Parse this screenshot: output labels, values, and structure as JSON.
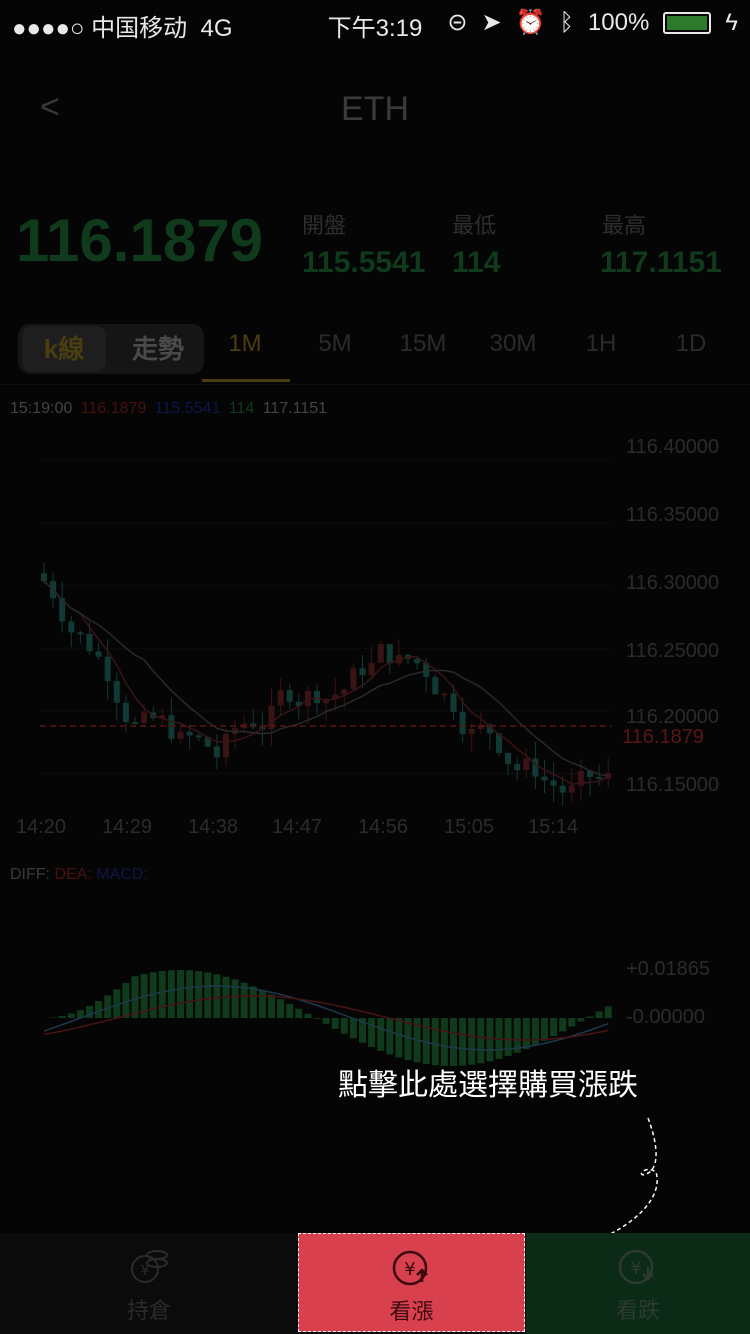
{
  "status_bar": {
    "carrier": "●●●●○ 中国移动",
    "network": "4G",
    "time": "下午3:19",
    "battery": "100%"
  },
  "nav": {
    "back_icon": "chevron-left-icon",
    "title": "ETH"
  },
  "quote": {
    "price": "116.1879",
    "open_label": "開盤",
    "open_value": "115.5541",
    "low_label": "最低",
    "low_value": "114",
    "high_label": "最高",
    "high_value": "117.1151"
  },
  "tabs": {
    "kline": "k線",
    "trend": "走勢",
    "intervals": [
      "1M",
      "5M",
      "15M",
      "30M",
      "1H",
      "1D"
    ],
    "active": "1M"
  },
  "chart_info": {
    "time": "15:19:00",
    "v1": "116.1879",
    "v2": "115.5541",
    "v3": "114",
    "v4": "117.1151"
  },
  "chart_data": {
    "type": "candlestick",
    "y_axis": [
      "116.40000",
      "116.35000",
      "116.30000",
      "116.25000",
      "116.20000",
      "116.15000"
    ],
    "current_price_label": "116.1879",
    "x_axis": [
      "14:20",
      "14:29",
      "14:38",
      "14:47",
      "14:56",
      "15:05",
      "15:14"
    ],
    "ylim": [
      116.14,
      116.41
    ],
    "current_price": 116.1879,
    "macd_labels": {
      "diff": "DIFF:",
      "dea": "DEA:",
      "macd": "MACD:"
    },
    "macd_axis": [
      "+0.01865",
      "-0.00000"
    ]
  },
  "callout": "點擊此處選擇購買漲跌",
  "bottom_bar": {
    "hold": "持倉",
    "up": "看漲",
    "down": "看跌"
  },
  "colors": {
    "up": "#d9404e",
    "down_bg": "#0b2b17",
    "accent": "#c9a227"
  }
}
